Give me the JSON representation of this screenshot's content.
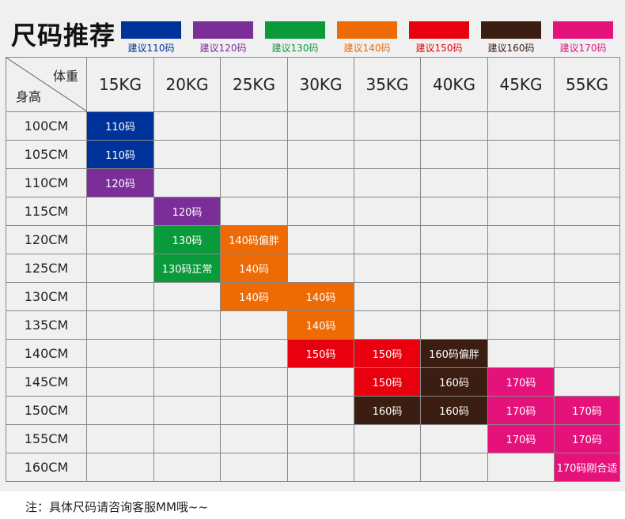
{
  "title": "尺码推荐",
  "legend": [
    {
      "label": "建议110码",
      "color": "#003399"
    },
    {
      "label": "建议120码",
      "color": "#7b2d98"
    },
    {
      "label": "建议130码",
      "color": "#0b9a3b"
    },
    {
      "label": "建议140码",
      "color": "#ee6a04"
    },
    {
      "label": "建议150码",
      "color": "#e8000e"
    },
    {
      "label": "建议160码",
      "color": "#3b1d11"
    },
    {
      "label": "建议170码",
      "color": "#e5127c"
    }
  ],
  "table": {
    "corner_weight": "体重",
    "corner_height": "身高",
    "weights": [
      "15KG",
      "20KG",
      "25KG",
      "30KG",
      "35KG",
      "40KG",
      "45KG",
      "55KG"
    ],
    "rows": [
      {
        "height": "100CM",
        "cells": [
          {
            "text": "110码",
            "color": "#003399"
          },
          null,
          null,
          null,
          null,
          null,
          null,
          null
        ]
      },
      {
        "height": "105CM",
        "cells": [
          {
            "text": "110码",
            "color": "#003399"
          },
          null,
          null,
          null,
          null,
          null,
          null,
          null
        ]
      },
      {
        "height": "110CM",
        "cells": [
          {
            "text": "120码",
            "color": "#7b2d98"
          },
          null,
          null,
          null,
          null,
          null,
          null,
          null
        ]
      },
      {
        "height": "115CM",
        "cells": [
          null,
          {
            "text": "120码",
            "color": "#7b2d98"
          },
          null,
          null,
          null,
          null,
          null,
          null
        ]
      },
      {
        "height": "120CM",
        "cells": [
          null,
          {
            "text": "130码",
            "color": "#0b9a3b"
          },
          {
            "text": "140码偏胖",
            "color": "#ee6a04"
          },
          null,
          null,
          null,
          null,
          null
        ]
      },
      {
        "height": "125CM",
        "cells": [
          null,
          {
            "text": "130码正常",
            "color": "#0b9a3b"
          },
          {
            "text": "140码",
            "color": "#ee6a04"
          },
          null,
          null,
          null,
          null,
          null
        ]
      },
      {
        "height": "130CM",
        "cells": [
          null,
          null,
          {
            "text": "140码",
            "color": "#ee6a04"
          },
          {
            "text": "140码",
            "color": "#ee6a04"
          },
          null,
          null,
          null,
          null
        ]
      },
      {
        "height": "135CM",
        "cells": [
          null,
          null,
          null,
          {
            "text": "140码",
            "color": "#ee6a04"
          },
          null,
          null,
          null,
          null
        ]
      },
      {
        "height": "140CM",
        "cells": [
          null,
          null,
          null,
          {
            "text": "150码",
            "color": "#e8000e"
          },
          {
            "text": "150码",
            "color": "#e8000e"
          },
          {
            "text": "160码偏胖",
            "color": "#3b1d11"
          },
          null,
          null
        ]
      },
      {
        "height": "145CM",
        "cells": [
          null,
          null,
          null,
          null,
          {
            "text": "150码",
            "color": "#e8000e"
          },
          {
            "text": "160码",
            "color": "#3b1d11"
          },
          {
            "text": "170码",
            "color": "#e5127c"
          },
          null
        ]
      },
      {
        "height": "150CM",
        "cells": [
          null,
          null,
          null,
          null,
          {
            "text": "160码",
            "color": "#3b1d11"
          },
          {
            "text": "160码",
            "color": "#3b1d11"
          },
          {
            "text": "170码",
            "color": "#e5127c"
          },
          {
            "text": "170码",
            "color": "#e5127c"
          }
        ]
      },
      {
        "height": "155CM",
        "cells": [
          null,
          null,
          null,
          null,
          null,
          null,
          {
            "text": "170码",
            "color": "#e5127c"
          },
          {
            "text": "170码",
            "color": "#e5127c"
          }
        ]
      },
      {
        "height": "160CM",
        "cells": [
          null,
          null,
          null,
          null,
          null,
          null,
          null,
          {
            "text": "170码刚合适",
            "color": "#e5127c"
          }
        ]
      }
    ]
  },
  "note": "注：具体尺码请咨询客服MM哦~~"
}
